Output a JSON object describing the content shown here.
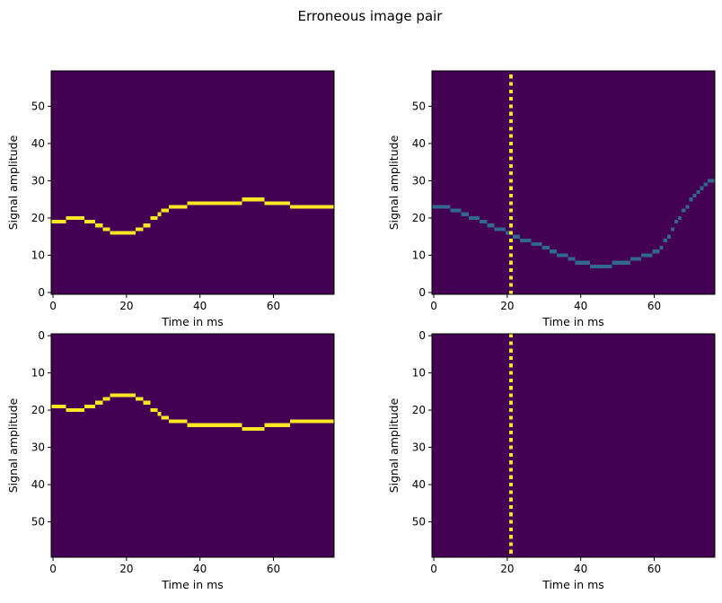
{
  "figure": {
    "suptitle": "Erroneous image pair"
  },
  "colors": {
    "background": "#440154",
    "strong": "#fde725",
    "medium": "#31688e",
    "frame": "#000000"
  },
  "chart_data": [
    {
      "id": "top-left",
      "type": "heatmap",
      "title": "",
      "xlabel": "Time in ms",
      "ylabel": "Signal amplitude",
      "xlim": [
        -0.5,
        76.5
      ],
      "ylim": [
        -0.5,
        59.5
      ],
      "y_origin": "lower",
      "xticks": [
        0,
        20,
        40,
        60
      ],
      "yticks": [
        0,
        10,
        20,
        30,
        40,
        50
      ],
      "trace_level": "strong",
      "trace_segments": [
        [
          0,
          3,
          19
        ],
        [
          4,
          8,
          20
        ],
        [
          9,
          11,
          19
        ],
        [
          12,
          13,
          18
        ],
        [
          14,
          15,
          17
        ],
        [
          16,
          22,
          16
        ],
        [
          23,
          24,
          17
        ],
        [
          25,
          26,
          18
        ],
        [
          27,
          28,
          20
        ],
        [
          29,
          29,
          21
        ],
        [
          30,
          31,
          22
        ],
        [
          32,
          36,
          23
        ],
        [
          37,
          51,
          24
        ],
        [
          52,
          57,
          25
        ],
        [
          58,
          64,
          24
        ],
        [
          65,
          76,
          23
        ]
      ],
      "vertical_markers": []
    },
    {
      "id": "top-right",
      "type": "heatmap",
      "title": "",
      "xlabel": "Time in ms",
      "ylabel": "Signal amplitude",
      "xlim": [
        -0.5,
        76.5
      ],
      "ylim": [
        -0.5,
        59.5
      ],
      "y_origin": "lower",
      "xticks": [
        0,
        20,
        40,
        60
      ],
      "yticks": [
        0,
        10,
        20,
        30,
        40,
        50
      ],
      "trace_level": "medium",
      "trace_segments": [
        [
          0,
          4,
          23
        ],
        [
          5,
          7,
          22
        ],
        [
          8,
          9,
          21
        ],
        [
          10,
          12,
          20
        ],
        [
          13,
          14,
          19
        ],
        [
          15,
          16,
          18
        ],
        [
          17,
          19,
          17
        ],
        [
          20,
          21,
          16
        ],
        [
          22,
          23,
          15
        ],
        [
          24,
          26,
          14
        ],
        [
          27,
          29,
          13
        ],
        [
          30,
          31,
          12
        ],
        [
          32,
          33,
          11
        ],
        [
          34,
          36,
          10
        ],
        [
          37,
          38,
          9
        ],
        [
          39,
          42,
          8
        ],
        [
          43,
          48,
          7
        ],
        [
          49,
          53,
          8
        ],
        [
          54,
          56,
          9
        ],
        [
          57,
          59,
          10
        ],
        [
          60,
          61,
          11
        ],
        [
          62,
          62,
          12
        ],
        [
          63,
          63,
          14
        ],
        [
          64,
          64,
          15
        ],
        [
          65,
          65,
          17
        ],
        [
          66,
          66,
          19
        ],
        [
          67,
          67,
          20
        ],
        [
          68,
          68,
          22
        ],
        [
          69,
          69,
          23
        ],
        [
          70,
          70,
          25
        ],
        [
          71,
          71,
          26
        ],
        [
          72,
          72,
          27
        ],
        [
          73,
          73,
          28
        ],
        [
          74,
          74,
          29
        ],
        [
          75,
          76,
          30
        ]
      ],
      "vertical_markers": [
        21
      ]
    },
    {
      "id": "bottom-left",
      "type": "heatmap",
      "title": "",
      "xlabel": "Time in ms",
      "ylabel": "Signal amplitude",
      "xlim": [
        -0.5,
        76.5
      ],
      "ylim": [
        -0.5,
        59.5
      ],
      "y_origin": "upper",
      "xticks": [
        0,
        20,
        40,
        60
      ],
      "yticks": [
        0,
        10,
        20,
        30,
        40,
        50
      ],
      "trace_level": "strong",
      "trace_segments": [
        [
          0,
          3,
          19
        ],
        [
          4,
          8,
          20
        ],
        [
          9,
          11,
          19
        ],
        [
          12,
          13,
          18
        ],
        [
          14,
          15,
          17
        ],
        [
          16,
          22,
          16
        ],
        [
          23,
          24,
          17
        ],
        [
          25,
          26,
          18
        ],
        [
          27,
          28,
          20
        ],
        [
          29,
          29,
          21
        ],
        [
          30,
          31,
          22
        ],
        [
          32,
          36,
          23
        ],
        [
          37,
          51,
          24
        ],
        [
          52,
          57,
          25
        ],
        [
          58,
          64,
          24
        ],
        [
          65,
          76,
          23
        ]
      ],
      "vertical_markers": []
    },
    {
      "id": "bottom-right",
      "type": "heatmap",
      "title": "",
      "xlabel": "Time in ms",
      "ylabel": "Signal amplitude",
      "xlim": [
        -0.5,
        76.5
      ],
      "ylim": [
        -0.5,
        59.5
      ],
      "y_origin": "upper",
      "xticks": [
        0,
        20,
        40,
        60
      ],
      "yticks": [
        0,
        10,
        20,
        30,
        40,
        50
      ],
      "trace_level": "strong",
      "trace_segments": [],
      "vertical_markers": [
        21
      ]
    }
  ]
}
